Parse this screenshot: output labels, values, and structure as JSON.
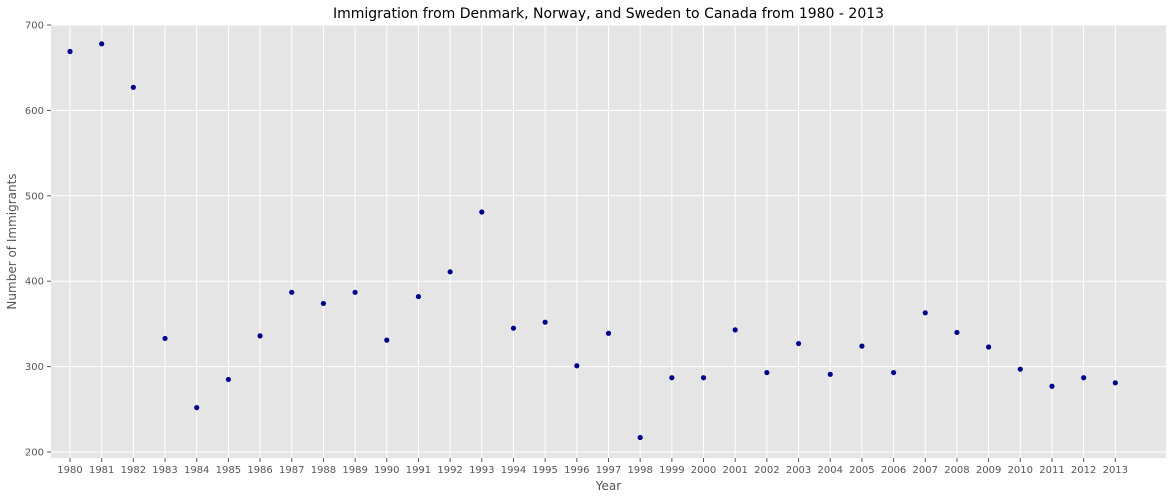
{
  "chart_data": {
    "type": "scatter",
    "title": "Immigration from Denmark, Norway, and Sweden to Canada from 1980 - 2013",
    "xlabel": "Year",
    "ylabel": "Number of Immigrants",
    "x": [
      1980,
      1981,
      1982,
      1983,
      1984,
      1985,
      1986,
      1987,
      1988,
      1989,
      1990,
      1991,
      1992,
      1993,
      1994,
      1995,
      1996,
      1997,
      1998,
      1999,
      2000,
      2001,
      2002,
      2003,
      2004,
      2005,
      2006,
      2007,
      2008,
      2009,
      2010,
      2011,
      2012,
      2013
    ],
    "y": [
      669,
      678,
      627,
      333,
      252,
      285,
      336,
      387,
      374,
      387,
      331,
      382,
      411,
      481,
      345,
      352,
      301,
      339,
      217,
      287,
      287,
      343,
      293,
      327,
      291,
      324,
      293,
      363,
      340,
      323,
      297,
      277,
      287,
      281
    ],
    "xlim": [
      1979.4,
      2014.6
    ],
    "ylim": [
      193,
      700
    ],
    "y_ticks": [
      200,
      300,
      400,
      500,
      600,
      700
    ],
    "x_ticks": [
      1980,
      1981,
      1982,
      1983,
      1984,
      1985,
      1986,
      1987,
      1988,
      1989,
      1990,
      1991,
      1992,
      1993,
      1994,
      1995,
      1996,
      1997,
      1998,
      1999,
      2000,
      2001,
      2002,
      2003,
      2004,
      2005,
      2006,
      2007,
      2008,
      2009,
      2010,
      2011,
      2012,
      2013
    ],
    "grid": true,
    "point_color": "#00008b",
    "background_color": "#e5e5e5"
  }
}
